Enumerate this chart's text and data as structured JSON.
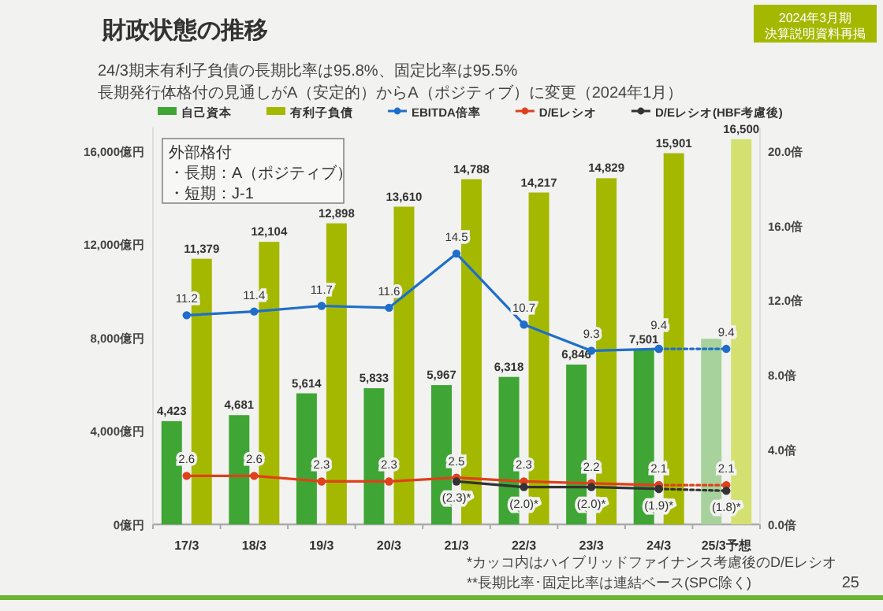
{
  "chart_data": {
    "type": "bar",
    "title": "財政状態の推移",
    "subtitle": "24/3期末有利子負債の長期比率は95.8%、固定比率は95.5%",
    "annotations": [
      "長期発行体格付の見通しがA（安定的）からA（ポジティブ）に変更（2024年1月）",
      "外部格付",
      "・長期：A（ポジティブ）",
      "・短期：J-1",
      "*カッコ内はハイブリッドファイナンス考慮後のD/Eレシオ",
      "**長期比率･固定比率は連結ベース(SPC除く)",
      "2024年3月期",
      "決算説明資料再掲",
      "25"
    ],
    "categories": [
      "17/3",
      "18/3",
      "19/3",
      "20/3",
      "21/3",
      "22/3",
      "23/3",
      "24/3",
      "25/3予想"
    ],
    "ylim": [
      0,
      17000
    ],
    "yticks": [
      {
        "value": 0,
        "label": "0億円"
      },
      {
        "value": 4000,
        "label": "4,000億円"
      },
      {
        "value": 8000,
        "label": "8,000億円"
      },
      {
        "value": 12000,
        "label": "12,000億円"
      },
      {
        "value": 16000,
        "label": "16,000億円"
      }
    ],
    "y2lim": [
      0,
      21.25
    ],
    "y2ticks": [
      {
        "value": 0,
        "label": "0.0倍"
      },
      {
        "value": 4,
        "label": "4.0倍"
      },
      {
        "value": 8,
        "label": "8.0倍"
      },
      {
        "value": 12,
        "label": "12.0倍"
      },
      {
        "value": 16,
        "label": "16.0倍"
      },
      {
        "value": 20,
        "label": "20.0倍"
      }
    ],
    "legend": "top",
    "marker": "circle",
    "series": [
      {
        "name": "自己資本",
        "color": "#3fa535",
        "colors": [
          "#3fa535",
          "#3fa535",
          "#3fa535",
          "#3fa535",
          "#3fa535",
          "#3fa535",
          "#3fa535",
          "#3fa535",
          "#a8d29c"
        ],
        "values": [
          4423,
          4681,
          5614,
          5833,
          5967,
          6318,
          6846,
          7501,
          7950
        ],
        "value_labels": [
          "4,423",
          "4,681",
          "5,614",
          "5,833",
          "5,967",
          "6,318",
          "6,846",
          "7,501",
          null
        ]
      },
      {
        "name": "有利子負債",
        "color": "#a5b800",
        "colors": [
          "#a5b800",
          "#a5b800",
          "#a5b800",
          "#a5b800",
          "#a5b800",
          "#a5b800",
          "#a5b800",
          "#a5b800",
          "#d4e070"
        ],
        "values": [
          11379,
          12104,
          12898,
          13610,
          14788,
          14217,
          14829,
          15901,
          16500
        ],
        "value_labels": [
          "11,379",
          "12,104",
          "12,898",
          "13,610",
          "14,788",
          "14,217",
          "14,829",
          "15,901",
          "16,500"
        ]
      },
      {
        "name": "EBITDA倍率",
        "type": "line",
        "axis": "y2",
        "color": "#1f6fc9",
        "line_style": "solid",
        "values": [
          11.2,
          11.4,
          11.7,
          11.6,
          14.5,
          10.7,
          9.3,
          9.4,
          null
        ],
        "value_labels": [
          "11.2",
          "11.4",
          "11.7",
          "11.6",
          "14.5",
          "10.7",
          "9.3",
          "9.4",
          null
        ]
      },
      {
        "type": "line",
        "axis": "y2",
        "color": "#1f6fc9",
        "line_style": "dotted",
        "values": [
          null,
          null,
          null,
          null,
          null,
          null,
          null,
          9.4,
          9.4
        ],
        "value_labels": [
          null,
          null,
          null,
          null,
          null,
          null,
          null,
          null,
          "9.4"
        ]
      },
      {
        "name": "D/Eレシオ",
        "type": "line",
        "axis": "y2",
        "color": "#e0401a",
        "line_style": "solid",
        "values": [
          2.6,
          2.6,
          2.3,
          2.3,
          2.5,
          2.3,
          2.2,
          2.1,
          null
        ],
        "value_labels": [
          "2.6",
          "2.6",
          "2.3",
          "2.3",
          "2.5",
          "2.3",
          "2.2",
          "2.1",
          null
        ]
      },
      {
        "type": "line",
        "axis": "y2",
        "color": "#e0401a",
        "line_style": "dotted",
        "values": [
          null,
          null,
          null,
          null,
          null,
          null,
          null,
          2.1,
          2.1
        ],
        "value_labels": [
          null,
          null,
          null,
          null,
          null,
          null,
          null,
          null,
          "2.1"
        ]
      },
      {
        "name": "D/Eレシオ(HBF考慮後)",
        "type": "line",
        "axis": "y2",
        "color": "#333333",
        "line_style": "solid",
        "values": [
          null,
          null,
          null,
          null,
          2.3,
          2.0,
          2.0,
          1.9,
          null
        ],
        "value_labels": [
          null,
          null,
          null,
          null,
          "(2.3)*",
          "(2.0)*",
          "(2.0)*",
          "(1.9)*",
          null
        ]
      },
      {
        "type": "line",
        "axis": "y2",
        "color": "#333333",
        "line_style": "dotted",
        "values": [
          null,
          null,
          null,
          null,
          null,
          null,
          null,
          1.9,
          1.8
        ],
        "value_labels": [
          null,
          null,
          null,
          null,
          null,
          null,
          null,
          null,
          "(1.8)*"
        ]
      }
    ]
  }
}
